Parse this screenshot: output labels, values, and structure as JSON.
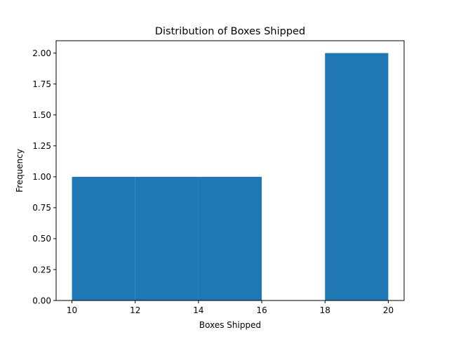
{
  "chart_data": {
    "type": "bar",
    "title": "Distribution of Boxes Shipped",
    "xlabel": "Boxes Shipped",
    "ylabel": "Frequency",
    "xlim": [
      9.5,
      20.5
    ],
    "ylim": [
      0,
      2.1
    ],
    "xticks": [
      "10",
      "12",
      "14",
      "16",
      "18",
      "20"
    ],
    "yticks": [
      "0.00",
      "0.25",
      "0.50",
      "0.75",
      "1.00",
      "1.25",
      "1.50",
      "1.75",
      "2.00"
    ],
    "bars": [
      {
        "x0": 10,
        "x1": 12,
        "value": 1
      },
      {
        "x0": 12,
        "x1": 14,
        "value": 1
      },
      {
        "x0": 14,
        "x1": 16,
        "value": 1
      },
      {
        "x0": 16,
        "x1": 18,
        "value": 0
      },
      {
        "x0": 18,
        "x1": 20,
        "value": 2
      }
    ],
    "bar_color": "#1f77b4",
    "grid": false
  }
}
